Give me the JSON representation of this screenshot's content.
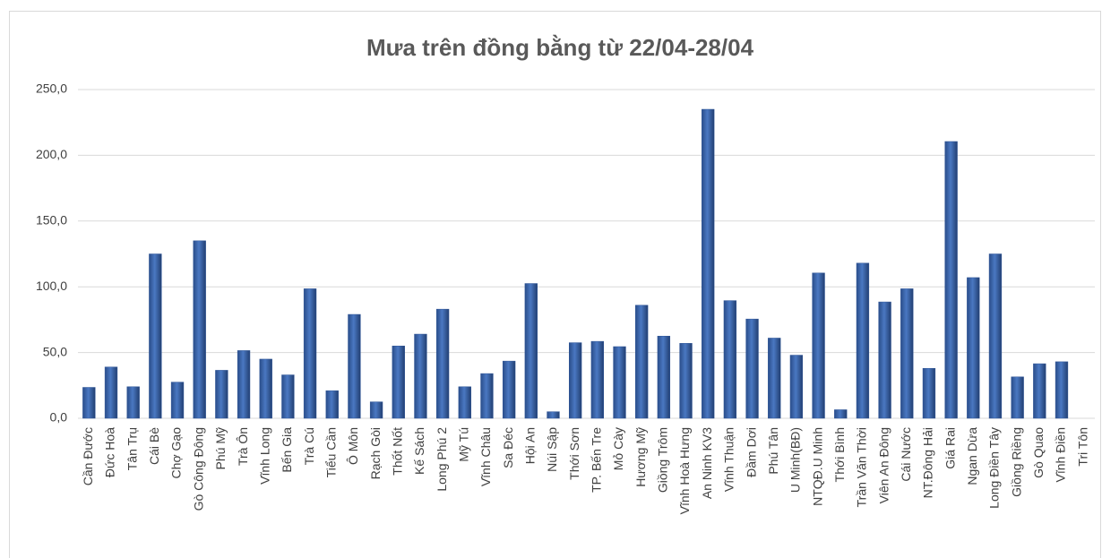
{
  "chart_data": {
    "type": "bar",
    "title": "Mưa trên đồng bằng từ 22/04-28/04",
    "categories": [
      "Cần Đước",
      "Đức Hoà",
      "Tân Trụ",
      "Cái Bè",
      "Chợ Gạo",
      "Gò Công Đông",
      "Phú Mỹ",
      "Trà Ôn",
      "Vĩnh Long",
      "Bến Gia",
      "Trà Cú",
      "Tiểu Cần",
      "Ô Môn",
      "Rạch Gòi",
      "Thốt Nốt",
      "Kế Sách",
      "Long Phú 2",
      "Mỹ Tú",
      "Vĩnh Châu",
      "Sa Đéc",
      "Hội An",
      "Núi Sập",
      "Thới Sơn",
      "TP. Bến Tre",
      "Mỏ Cày",
      "Hương Mỹ",
      "Giồng Trôm",
      "Vĩnh Hoà Hưng",
      "An Ninh KV3",
      "Vĩnh Thuận",
      "Đầm Dơi",
      "Phú Tân",
      "U Minh(BĐ)",
      "NTQĐ.U Minh",
      "Thới Bình",
      "Trần Văn Thời",
      "Viên An Đông",
      "Cái Nước",
      "NT.Đông Hải",
      "Giá Rai",
      "Ngan Dừa",
      "Long Điền Tây",
      "Giồng Riềng",
      "Gò Quao",
      "Vĩnh Điền",
      "Tri Tôn"
    ],
    "values": [
      23.5,
      39,
      24,
      125,
      27.5,
      135,
      36.5,
      51.5,
      45,
      33,
      98.5,
      21,
      79,
      12.5,
      55,
      64,
      83,
      24,
      34,
      43.5,
      102.5,
      5,
      57.5,
      58.5,
      54.5,
      86,
      62.5,
      57,
      235,
      89.5,
      75.5,
      61,
      48,
      110.5,
      6.5,
      118,
      88.5,
      98.5,
      38,
      210.5,
      107,
      125,
      31.5,
      41.5,
      43,
      0
    ],
    "color": "#2f5597",
    "ylim": [
      0,
      250
    ],
    "yticks": [
      {
        "value": 0,
        "label": "0,0"
      },
      {
        "value": 50,
        "label": "50,0"
      },
      {
        "value": 100,
        "label": "100,0"
      },
      {
        "value": 150,
        "label": "150,0"
      },
      {
        "value": 200,
        "label": "200,0"
      },
      {
        "value": 250,
        "label": "250,0"
      }
    ],
    "grid": true
  }
}
